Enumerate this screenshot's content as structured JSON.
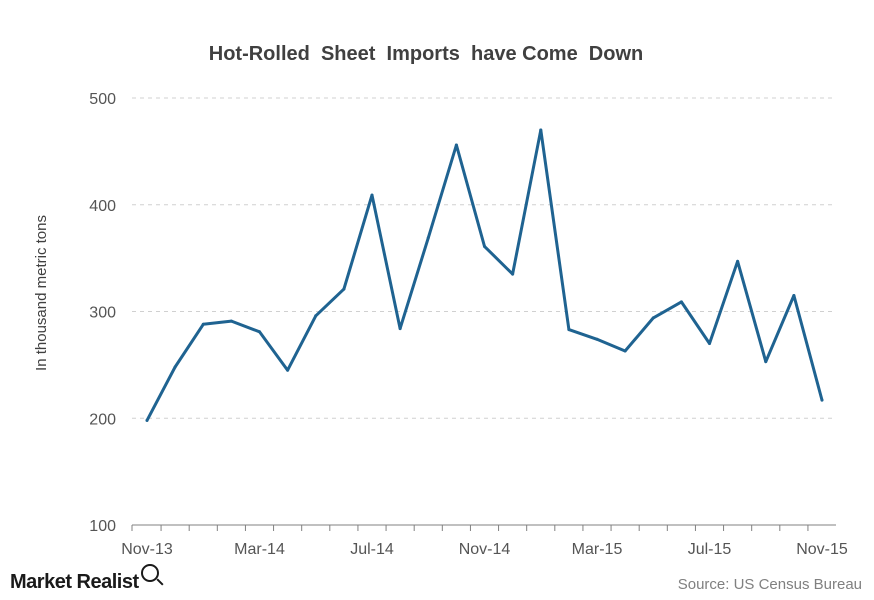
{
  "chart_data": {
    "type": "line",
    "title": "Hot-Rolled  Sheet  Imports  have Come  Down",
    "ylabel": "In thousand metric tons",
    "xlabel": "",
    "ylim": [
      100,
      500
    ],
    "yticks": [
      100,
      200,
      300,
      400,
      500
    ],
    "x": [
      "Nov-13",
      "Dec-13",
      "Jan-14",
      "Feb-14",
      "Mar-14",
      "Apr-14",
      "May-14",
      "Jun-14",
      "Jul-14",
      "Aug-14",
      "Sep-14",
      "Oct-14",
      "Nov-14",
      "Dec-14",
      "Jan-15",
      "Feb-15",
      "Mar-15",
      "Apr-15",
      "May-15",
      "Jun-15",
      "Jul-15",
      "Aug-15",
      "Sep-15",
      "Oct-15",
      "Nov-15"
    ],
    "xtick_labels": [
      "Nov-13",
      "Mar-14",
      "Jul-14",
      "Nov-14",
      "Mar-15",
      "Jul-15",
      "Nov-15"
    ],
    "series": [
      {
        "color": "#1f6391",
        "values": [
          198,
          248,
          288,
          291,
          281,
          245,
          296,
          321,
          409,
          284,
          369,
          456,
          361,
          335,
          470,
          283,
          274,
          263,
          294,
          309,
          270,
          347,
          253,
          315,
          217
        ]
      }
    ],
    "grid": true,
    "legend": "none"
  },
  "brand": {
    "text": "Market Realist",
    "icon": "magnifier-icon"
  },
  "source": {
    "text": "Source: US Census Bureau"
  }
}
